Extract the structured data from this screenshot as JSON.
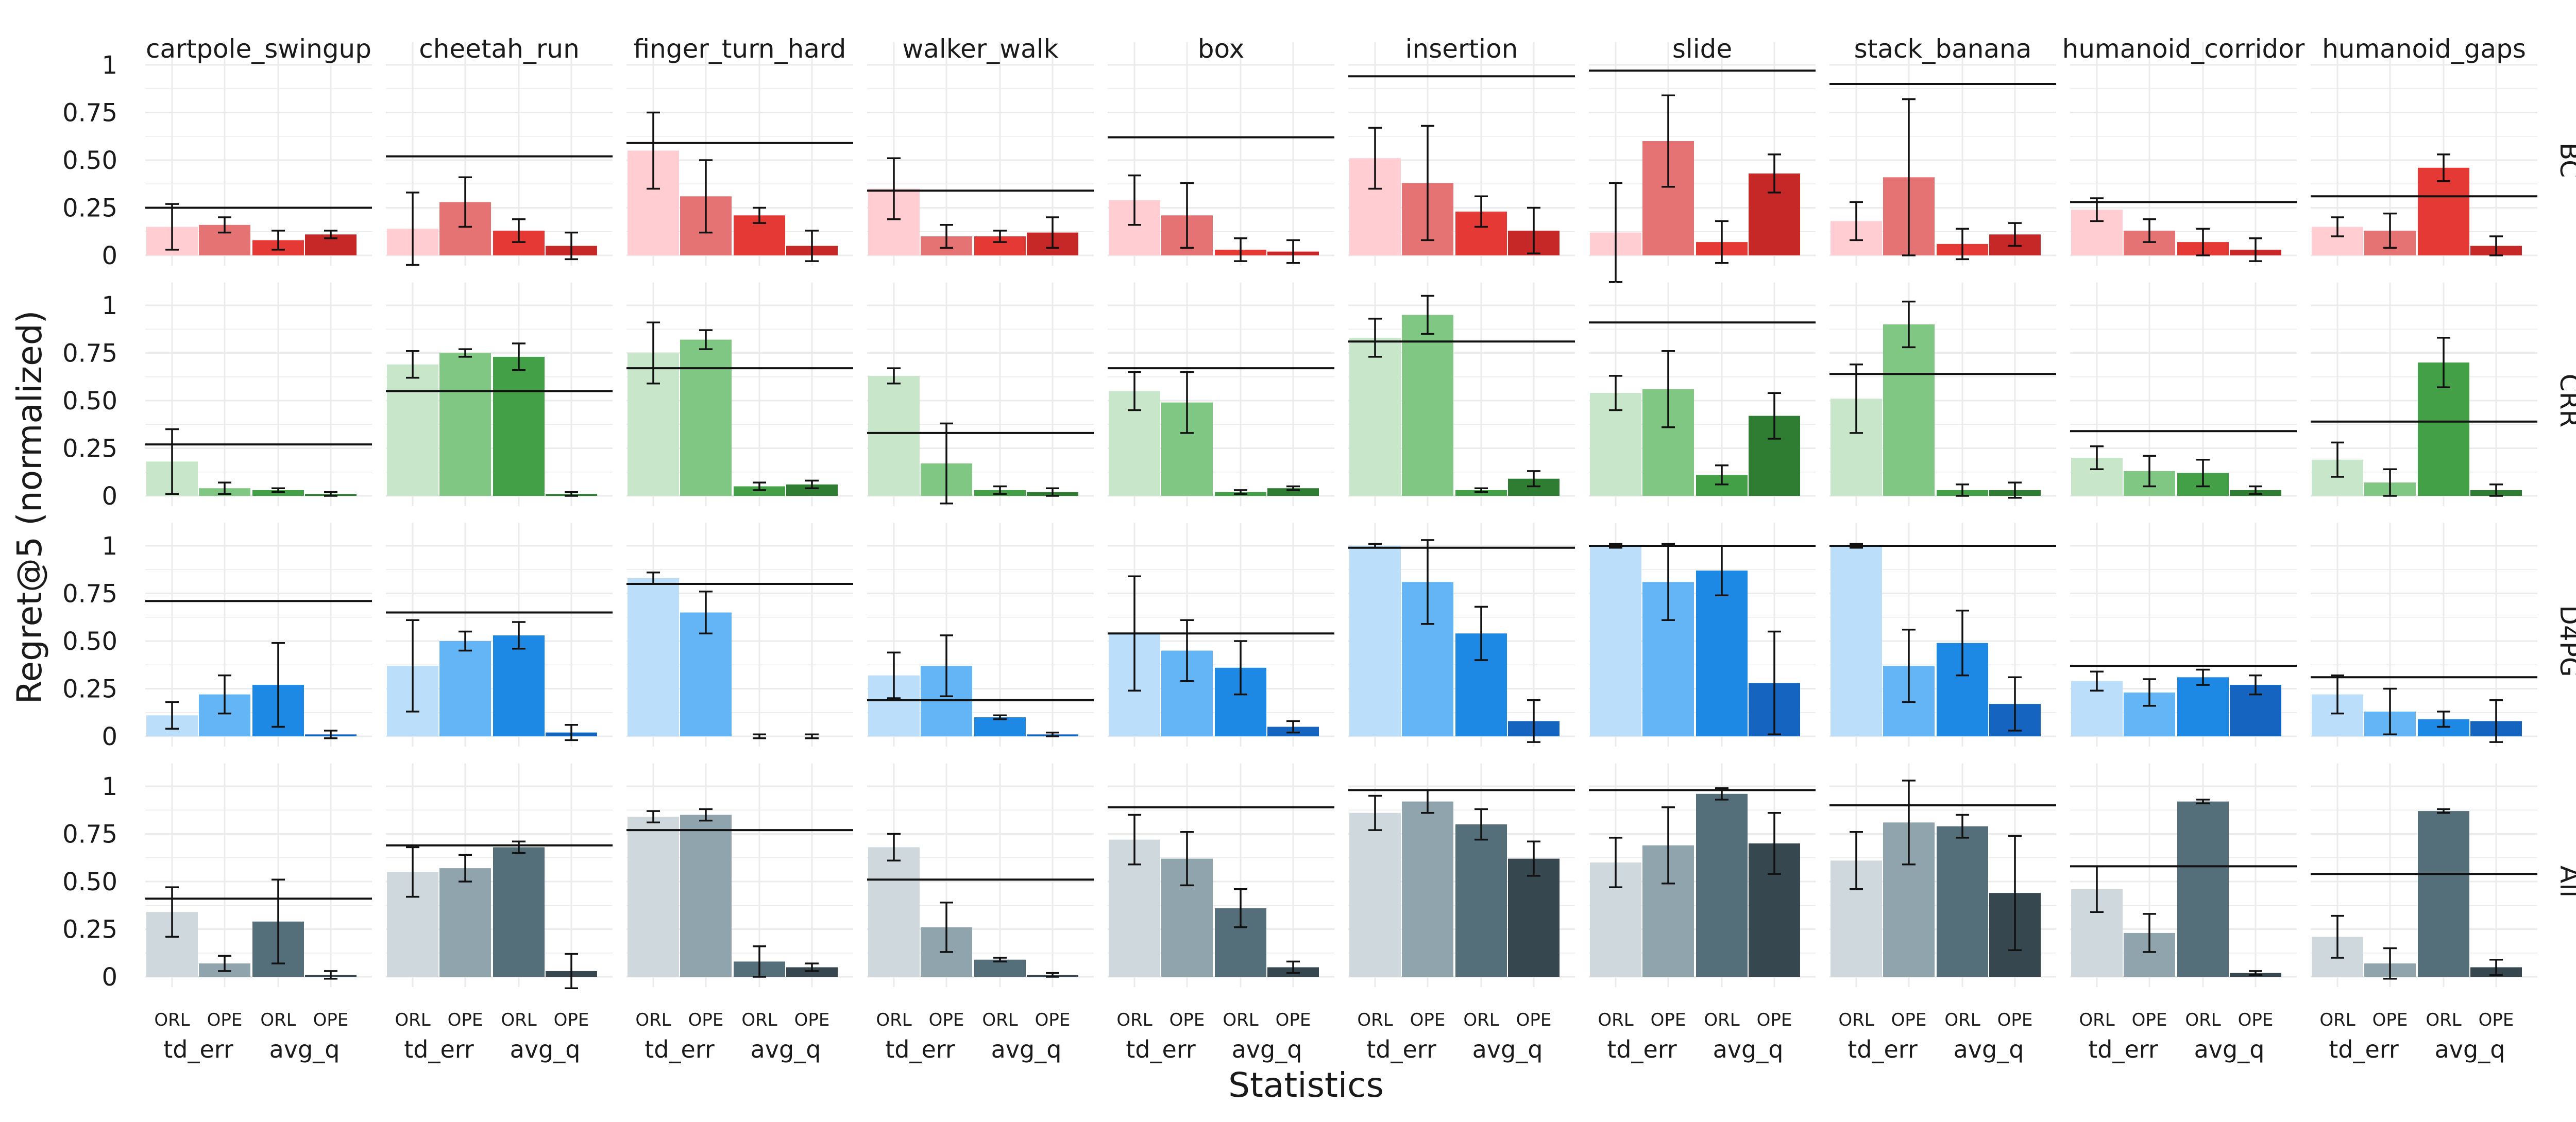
{
  "chart_data": {
    "type": "bar",
    "ylabel": "Regret@5 (normalized)",
    "xlabel": "Statistics",
    "ylim": [
      0,
      1
    ],
    "yticks": [
      0,
      0.25,
      0.5,
      0.75,
      1
    ],
    "ytick_labels": [
      "0",
      "0.25",
      "0.50",
      "0.75",
      "1"
    ],
    "grid": true,
    "columns": [
      "cartpole_swingup",
      "cheetah_run",
      "finger_turn_hard",
      "walker_walk",
      "box",
      "insertion",
      "slide",
      "stack_banana",
      "humanoid_corridor",
      "humanoid_gaps"
    ],
    "bar_labels": [
      "ORL",
      "OPE",
      "ORL",
      "OPE"
    ],
    "group_labels": [
      "td_err",
      "avg_q"
    ],
    "rows": [
      {
        "name": "BC",
        "colors": [
          "#ffcdd2",
          "#e57373",
          "#e53935",
          "#c62828"
        ],
        "panels": [
          {
            "values": [
              0.15,
              0.16,
              0.08,
              0.11
            ],
            "errors": [
              0.12,
              0.04,
              0.05,
              0.02
            ],
            "hline": 0.25
          },
          {
            "values": [
              0.14,
              0.28,
              0.13,
              0.05
            ],
            "errors": [
              0.19,
              0.13,
              0.06,
              0.07
            ],
            "hline": 0.52
          },
          {
            "values": [
              0.55,
              0.31,
              0.21,
              0.05
            ],
            "errors": [
              0.2,
              0.19,
              0.04,
              0.08
            ],
            "hline": 0.59
          },
          {
            "values": [
              0.35,
              0.1,
              0.1,
              0.12
            ],
            "errors": [
              0.16,
              0.06,
              0.03,
              0.08
            ],
            "hline": 0.34
          },
          {
            "values": [
              0.29,
              0.21,
              0.03,
              0.02
            ],
            "errors": [
              0.13,
              0.17,
              0.06,
              0.06
            ],
            "hline": 0.62
          },
          {
            "values": [
              0.51,
              0.38,
              0.23,
              0.13
            ],
            "errors": [
              0.16,
              0.3,
              0.08,
              0.12
            ],
            "hline": 0.94
          },
          {
            "values": [
              0.12,
              0.6,
              0.07,
              0.43
            ],
            "errors": [
              0.26,
              0.24,
              0.11,
              0.1
            ],
            "hline": 0.97
          },
          {
            "values": [
              0.18,
              0.41,
              0.06,
              0.11
            ],
            "errors": [
              0.1,
              0.41,
              0.08,
              0.06
            ],
            "hline": 0.9
          },
          {
            "values": [
              0.24,
              0.13,
              0.07,
              0.03
            ],
            "errors": [
              0.06,
              0.06,
              0.07,
              0.06
            ],
            "hline": 0.28
          },
          {
            "values": [
              0.15,
              0.13,
              0.46,
              0.05
            ],
            "errors": [
              0.05,
              0.09,
              0.07,
              0.05
            ],
            "hline": 0.31
          }
        ]
      },
      {
        "name": "CRR",
        "colors": [
          "#c8e6c9",
          "#81c784",
          "#43a047",
          "#2e7d32"
        ],
        "panels": [
          {
            "values": [
              0.18,
              0.04,
              0.03,
              0.01
            ],
            "errors": [
              0.17,
              0.03,
              0.01,
              0.01
            ],
            "hline": 0.27
          },
          {
            "values": [
              0.69,
              0.75,
              0.73,
              0.01
            ],
            "errors": [
              0.07,
              0.02,
              0.07,
              0.01
            ],
            "hline": 0.55
          },
          {
            "values": [
              0.75,
              0.82,
              0.05,
              0.06
            ],
            "errors": [
              0.16,
              0.05,
              0.02,
              0.02
            ],
            "hline": 0.67
          },
          {
            "values": [
              0.63,
              0.17,
              0.03,
              0.02
            ],
            "errors": [
              0.04,
              0.21,
              0.02,
              0.02
            ],
            "hline": 0.33
          },
          {
            "values": [
              0.55,
              0.49,
              0.02,
              0.04
            ],
            "errors": [
              0.1,
              0.16,
              0.01,
              0.01
            ],
            "hline": 0.67
          },
          {
            "values": [
              0.83,
              0.95,
              0.03,
              0.09
            ],
            "errors": [
              0.1,
              0.1,
              0.01,
              0.04
            ],
            "hline": 0.81
          },
          {
            "values": [
              0.54,
              0.56,
              0.11,
              0.42
            ],
            "errors": [
              0.09,
              0.2,
              0.05,
              0.12
            ],
            "hline": 0.91
          },
          {
            "values": [
              0.51,
              0.9,
              0.03,
              0.03
            ],
            "errors": [
              0.18,
              0.12,
              0.03,
              0.04
            ],
            "hline": 0.64
          },
          {
            "values": [
              0.2,
              0.13,
              0.12,
              0.03
            ],
            "errors": [
              0.06,
              0.08,
              0.07,
              0.02
            ],
            "hline": 0.34
          },
          {
            "values": [
              0.19,
              0.07,
              0.7,
              0.03
            ],
            "errors": [
              0.09,
              0.07,
              0.13,
              0.03
            ],
            "hline": 0.39
          }
        ]
      },
      {
        "name": "D4PG",
        "colors": [
          "#bbdefb",
          "#64b5f6",
          "#1e88e5",
          "#1565c0"
        ],
        "panels": [
          {
            "values": [
              0.11,
              0.22,
              0.27,
              0.01
            ],
            "errors": [
              0.07,
              0.1,
              0.22,
              0.02
            ],
            "hline": 0.71
          },
          {
            "values": [
              0.37,
              0.5,
              0.53,
              0.02
            ],
            "errors": [
              0.24,
              0.05,
              0.07,
              0.04
            ],
            "hline": 0.65
          },
          {
            "values": [
              0.83,
              0.65,
              0.0,
              0.0
            ],
            "errors": [
              0.03,
              0.11,
              0.01,
              0.01
            ],
            "hline": 0.8
          },
          {
            "values": [
              0.32,
              0.37,
              0.1,
              0.01
            ],
            "errors": [
              0.12,
              0.16,
              0.01,
              0.01
            ],
            "hline": 0.19
          },
          {
            "values": [
              0.54,
              0.45,
              0.36,
              0.05
            ],
            "errors": [
              0.3,
              0.16,
              0.14,
              0.03
            ],
            "hline": 0.54
          },
          {
            "values": [
              1.0,
              0.81,
              0.54,
              0.08
            ],
            "errors": [
              0.01,
              0.22,
              0.14,
              0.11
            ],
            "hline": 0.99
          },
          {
            "values": [
              1.0,
              0.81,
              0.87,
              0.28
            ],
            "errors": [
              0.01,
              0.2,
              0.13,
              0.27
            ],
            "hline": 1.0
          },
          {
            "values": [
              1.0,
              0.37,
              0.49,
              0.17
            ],
            "errors": [
              0.01,
              0.19,
              0.17,
              0.14
            ],
            "hline": 1.0
          },
          {
            "values": [
              0.29,
              0.23,
              0.31,
              0.27
            ],
            "errors": [
              0.05,
              0.07,
              0.04,
              0.05
            ],
            "hline": 0.37
          },
          {
            "values": [
              0.22,
              0.13,
              0.09,
              0.08
            ],
            "errors": [
              0.1,
              0.12,
              0.04,
              0.11
            ],
            "hline": 0.31
          }
        ]
      },
      {
        "name": "All",
        "colors": [
          "#cfd8dc",
          "#90a4ae",
          "#546e7a",
          "#37474f"
        ],
        "panels": [
          {
            "values": [
              0.34,
              0.07,
              0.29,
              0.01
            ],
            "errors": [
              0.13,
              0.04,
              0.22,
              0.02
            ],
            "hline": 0.41
          },
          {
            "values": [
              0.55,
              0.57,
              0.68,
              0.03
            ],
            "errors": [
              0.13,
              0.07,
              0.03,
              0.09
            ],
            "hline": 0.69
          },
          {
            "values": [
              0.84,
              0.85,
              0.08,
              0.05
            ],
            "errors": [
              0.03,
              0.03,
              0.08,
              0.02
            ],
            "hline": 0.77
          },
          {
            "values": [
              0.68,
              0.26,
              0.09,
              0.01
            ],
            "errors": [
              0.07,
              0.13,
              0.01,
              0.01
            ],
            "hline": 0.51
          },
          {
            "values": [
              0.72,
              0.62,
              0.36,
              0.05
            ],
            "errors": [
              0.13,
              0.14,
              0.1,
              0.03
            ],
            "hline": 0.89
          },
          {
            "values": [
              0.86,
              0.92,
              0.8,
              0.62
            ],
            "errors": [
              0.09,
              0.06,
              0.08,
              0.09
            ],
            "hline": 0.98
          },
          {
            "values": [
              0.6,
              0.69,
              0.96,
              0.7
            ],
            "errors": [
              0.13,
              0.2,
              0.03,
              0.16
            ],
            "hline": 0.98
          },
          {
            "values": [
              0.61,
              0.81,
              0.79,
              0.44
            ],
            "errors": [
              0.15,
              0.22,
              0.06,
              0.3
            ],
            "hline": 0.9
          },
          {
            "values": [
              0.46,
              0.23,
              0.92,
              0.02
            ],
            "errors": [
              0.12,
              0.1,
              0.01,
              0.01
            ],
            "hline": 0.58
          },
          {
            "values": [
              0.21,
              0.07,
              0.87,
              0.05
            ],
            "errors": [
              0.11,
              0.08,
              0.01,
              0.04
            ],
            "hline": 0.54
          }
        ]
      }
    ]
  }
}
